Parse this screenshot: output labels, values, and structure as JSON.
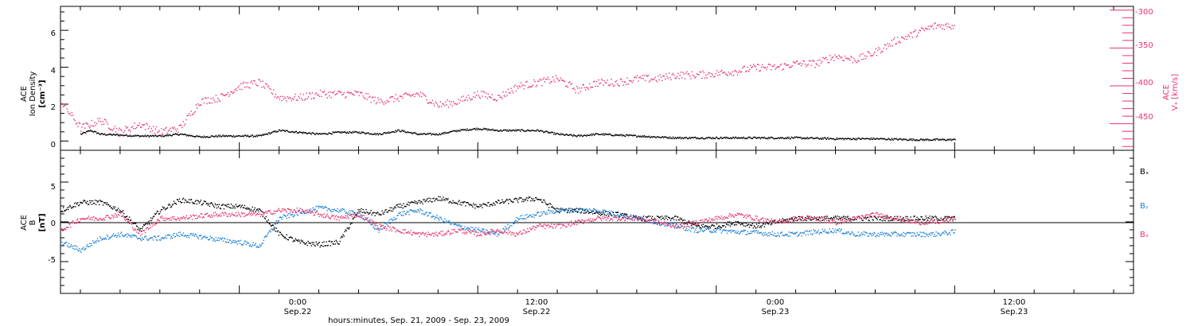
{
  "colors": {
    "black": "#000000",
    "pink": "#e8336b",
    "blue": "#1a7fd4"
  },
  "xaxis": {
    "label": "hours:minutes, Sep. 21, 2009 - Sep. 23, 2009",
    "range_hours": [
      -9,
      45
    ],
    "ticks": [
      {
        "hour": 0,
        "time": "0:00",
        "date": "Sep.22"
      },
      {
        "hour": 12,
        "time": "12:00",
        "date": "Sep.22"
      },
      {
        "hour": 24,
        "time": "0:00",
        "date": "Sep.23"
      },
      {
        "hour": 36,
        "time": "12:00",
        "date": "Sep.23"
      }
    ]
  },
  "panels": {
    "top": {
      "left_label": [
        "ACE",
        "Ion Density",
        "[cm⁻³]"
      ],
      "right_label": [
        "ACE",
        "Vₓ [km/s]"
      ],
      "left_ticks": [
        "0",
        "2",
        "4",
        "6"
      ],
      "right_ticks": [
        "-300",
        "-350",
        "-400",
        "-450"
      ]
    },
    "bottom": {
      "left_label": [
        "ACE",
        "B",
        "[nT]"
      ],
      "left_ticks": [
        "5",
        "0",
        "-5"
      ],
      "legend": [
        "Bₓ",
        "Bᵧ",
        "Bₓ"
      ]
    }
  },
  "chart_data": [
    {
      "type": "scatter",
      "title": "",
      "ylabel": "ACE Ion Density [cm-3]",
      "ylim": [
        -0.5,
        7.3
      ],
      "y2label": "ACE Vx [km/s]",
      "y2lim": [
        -485,
        -295
      ],
      "x_units": "hours since 0:00 Sep.22, 2009",
      "xlim": [
        -9,
        45
      ],
      "series": [
        {
          "name": "Ion Density",
          "axis": "left",
          "color": "#000000",
          "x": [
            -8,
            -7.5,
            -7,
            -6,
            -5,
            -4,
            -3,
            -2,
            -1,
            0,
            1,
            2,
            3,
            4,
            5,
            6,
            7,
            8,
            9,
            10,
            11,
            12,
            13,
            14,
            15,
            16,
            17,
            18,
            20,
            22,
            24,
            26,
            28,
            30,
            32,
            34,
            35,
            36
          ],
          "y": [
            0.4,
            0.6,
            0.4,
            0.35,
            0.3,
            0.3,
            0.4,
            0.25,
            0.3,
            0.3,
            0.3,
            0.6,
            0.5,
            0.4,
            0.5,
            0.5,
            0.4,
            0.6,
            0.4,
            0.4,
            0.6,
            0.7,
            0.6,
            0.6,
            0.6,
            0.4,
            0.3,
            0.4,
            0.3,
            0.2,
            0.2,
            0.2,
            0.2,
            0.15,
            0.15,
            0.1,
            0.1,
            0.1
          ]
        },
        {
          "name": "Vx",
          "axis": "right",
          "color": "#e8336b",
          "x": [
            -9,
            -8,
            -7,
            -6,
            -5,
            -4,
            -3,
            -2,
            -1,
            0,
            1,
            2,
            3,
            4,
            5,
            6,
            7,
            8,
            9,
            10,
            11,
            12,
            13,
            14,
            15,
            16,
            17,
            18,
            19,
            20,
            21,
            22,
            23,
            24,
            25,
            26,
            27,
            28,
            29,
            30,
            31,
            32,
            33,
            34,
            35,
            36
          ],
          "y": [
            -420,
            -455,
            -445,
            -460,
            -450,
            -460,
            -455,
            -420,
            -415,
            -400,
            -395,
            -415,
            -415,
            -410,
            -410,
            -410,
            -420,
            -415,
            -410,
            -425,
            -420,
            -410,
            -415,
            -400,
            -395,
            -390,
            -405,
            -395,
            -395,
            -390,
            -390,
            -385,
            -385,
            -383,
            -380,
            -375,
            -375,
            -370,
            -370,
            -360,
            -365,
            -355,
            -340,
            -330,
            -320,
            -320
          ]
        }
      ]
    },
    {
      "type": "scatter",
      "title": "",
      "ylabel": "ACE B [nT]",
      "ylim": [
        -9,
        9
      ],
      "x_units": "hours since 0:00 Sep.22, 2009",
      "xlim": [
        -9,
        45
      ],
      "series": [
        {
          "name": "Bx",
          "color": "#000000",
          "x": [
            -9,
            -8,
            -7,
            -6,
            -5,
            -4,
            -3,
            -2,
            -1,
            0,
            1,
            2,
            3,
            4,
            5,
            6,
            7,
            8,
            9,
            10,
            11,
            12,
            13,
            14,
            15,
            16,
            17,
            18,
            19,
            20,
            21,
            22,
            23,
            24,
            25,
            26,
            27,
            28,
            29,
            30,
            31,
            32,
            33,
            34,
            35,
            36
          ],
          "y": [
            1.5,
            2.5,
            2.5,
            1.5,
            -1.0,
            1.5,
            2.8,
            2.5,
            2.0,
            2.0,
            1.5,
            -1.5,
            -2.5,
            -2.8,
            -2.5,
            1.5,
            1.0,
            2.0,
            2.5,
            3.0,
            2.5,
            2.0,
            2.5,
            2.8,
            3.0,
            1.5,
            1.5,
            1.2,
            1.0,
            0.5,
            0.5,
            0.5,
            -0.5,
            -0.5,
            0.0,
            -0.5,
            0.0,
            0.5,
            0.5,
            0.5,
            0.5,
            0.5,
            0.5,
            0.5,
            0.5,
            0.5
          ]
        },
        {
          "name": "By",
          "color": "#1a7fd4",
          "x": [
            -9,
            -8,
            -7,
            -6,
            -5,
            -4,
            -3,
            -2,
            -1,
            0,
            1,
            2,
            3,
            4,
            5,
            6,
            7,
            8,
            9,
            10,
            11,
            12,
            13,
            14,
            15,
            16,
            17,
            18,
            19,
            20,
            21,
            22,
            23,
            24,
            25,
            26,
            27,
            28,
            29,
            30,
            31,
            32,
            33,
            34,
            35,
            36
          ],
          "y": [
            -2.5,
            -3.5,
            -2.0,
            -1.5,
            -2.0,
            -2.0,
            -1.5,
            -1.8,
            -2.2,
            -2.5,
            -3.0,
            0.5,
            1.2,
            1.8,
            1.5,
            1.0,
            -1.0,
            1.0,
            1.5,
            0.5,
            -0.5,
            -1.0,
            -1.5,
            0.5,
            1.0,
            1.5,
            1.5,
            1.5,
            1.0,
            0.5,
            0.0,
            -0.5,
            -1.0,
            -1.0,
            -1.2,
            -1.3,
            -1.5,
            -1.5,
            -1.2,
            -1.0,
            -1.5,
            -1.5,
            -1.5,
            -1.5,
            -1.5,
            -1.2
          ]
        },
        {
          "name": "Bz",
          "color": "#e8336b",
          "x": [
            -9,
            -8,
            -7,
            -6,
            -5,
            -4,
            -3,
            -2,
            -1,
            0,
            1,
            2,
            3,
            4,
            5,
            6,
            7,
            8,
            9,
            10,
            11,
            12,
            13,
            14,
            15,
            16,
            17,
            18,
            19,
            20,
            21,
            22,
            23,
            24,
            25,
            26,
            27,
            28,
            29,
            30,
            31,
            32,
            33,
            34,
            35,
            36
          ],
          "y": [
            -1.0,
            0.5,
            0.5,
            1.0,
            -1.5,
            0.5,
            0.5,
            0.8,
            1.0,
            1.0,
            1.0,
            1.5,
            1.5,
            1.0,
            0.5,
            1.0,
            -0.5,
            -1.0,
            -1.5,
            -1.5,
            -1.0,
            -1.5,
            -1.0,
            -1.5,
            -0.5,
            -0.5,
            0.0,
            0.5,
            0.5,
            0.5,
            0.0,
            -0.5,
            0.0,
            0.5,
            1.0,
            0.5,
            0.0,
            0.5,
            0.5,
            0.0,
            0.5,
            1.0,
            0.5,
            0.0,
            0.0,
            0.5
          ]
        }
      ]
    }
  ]
}
